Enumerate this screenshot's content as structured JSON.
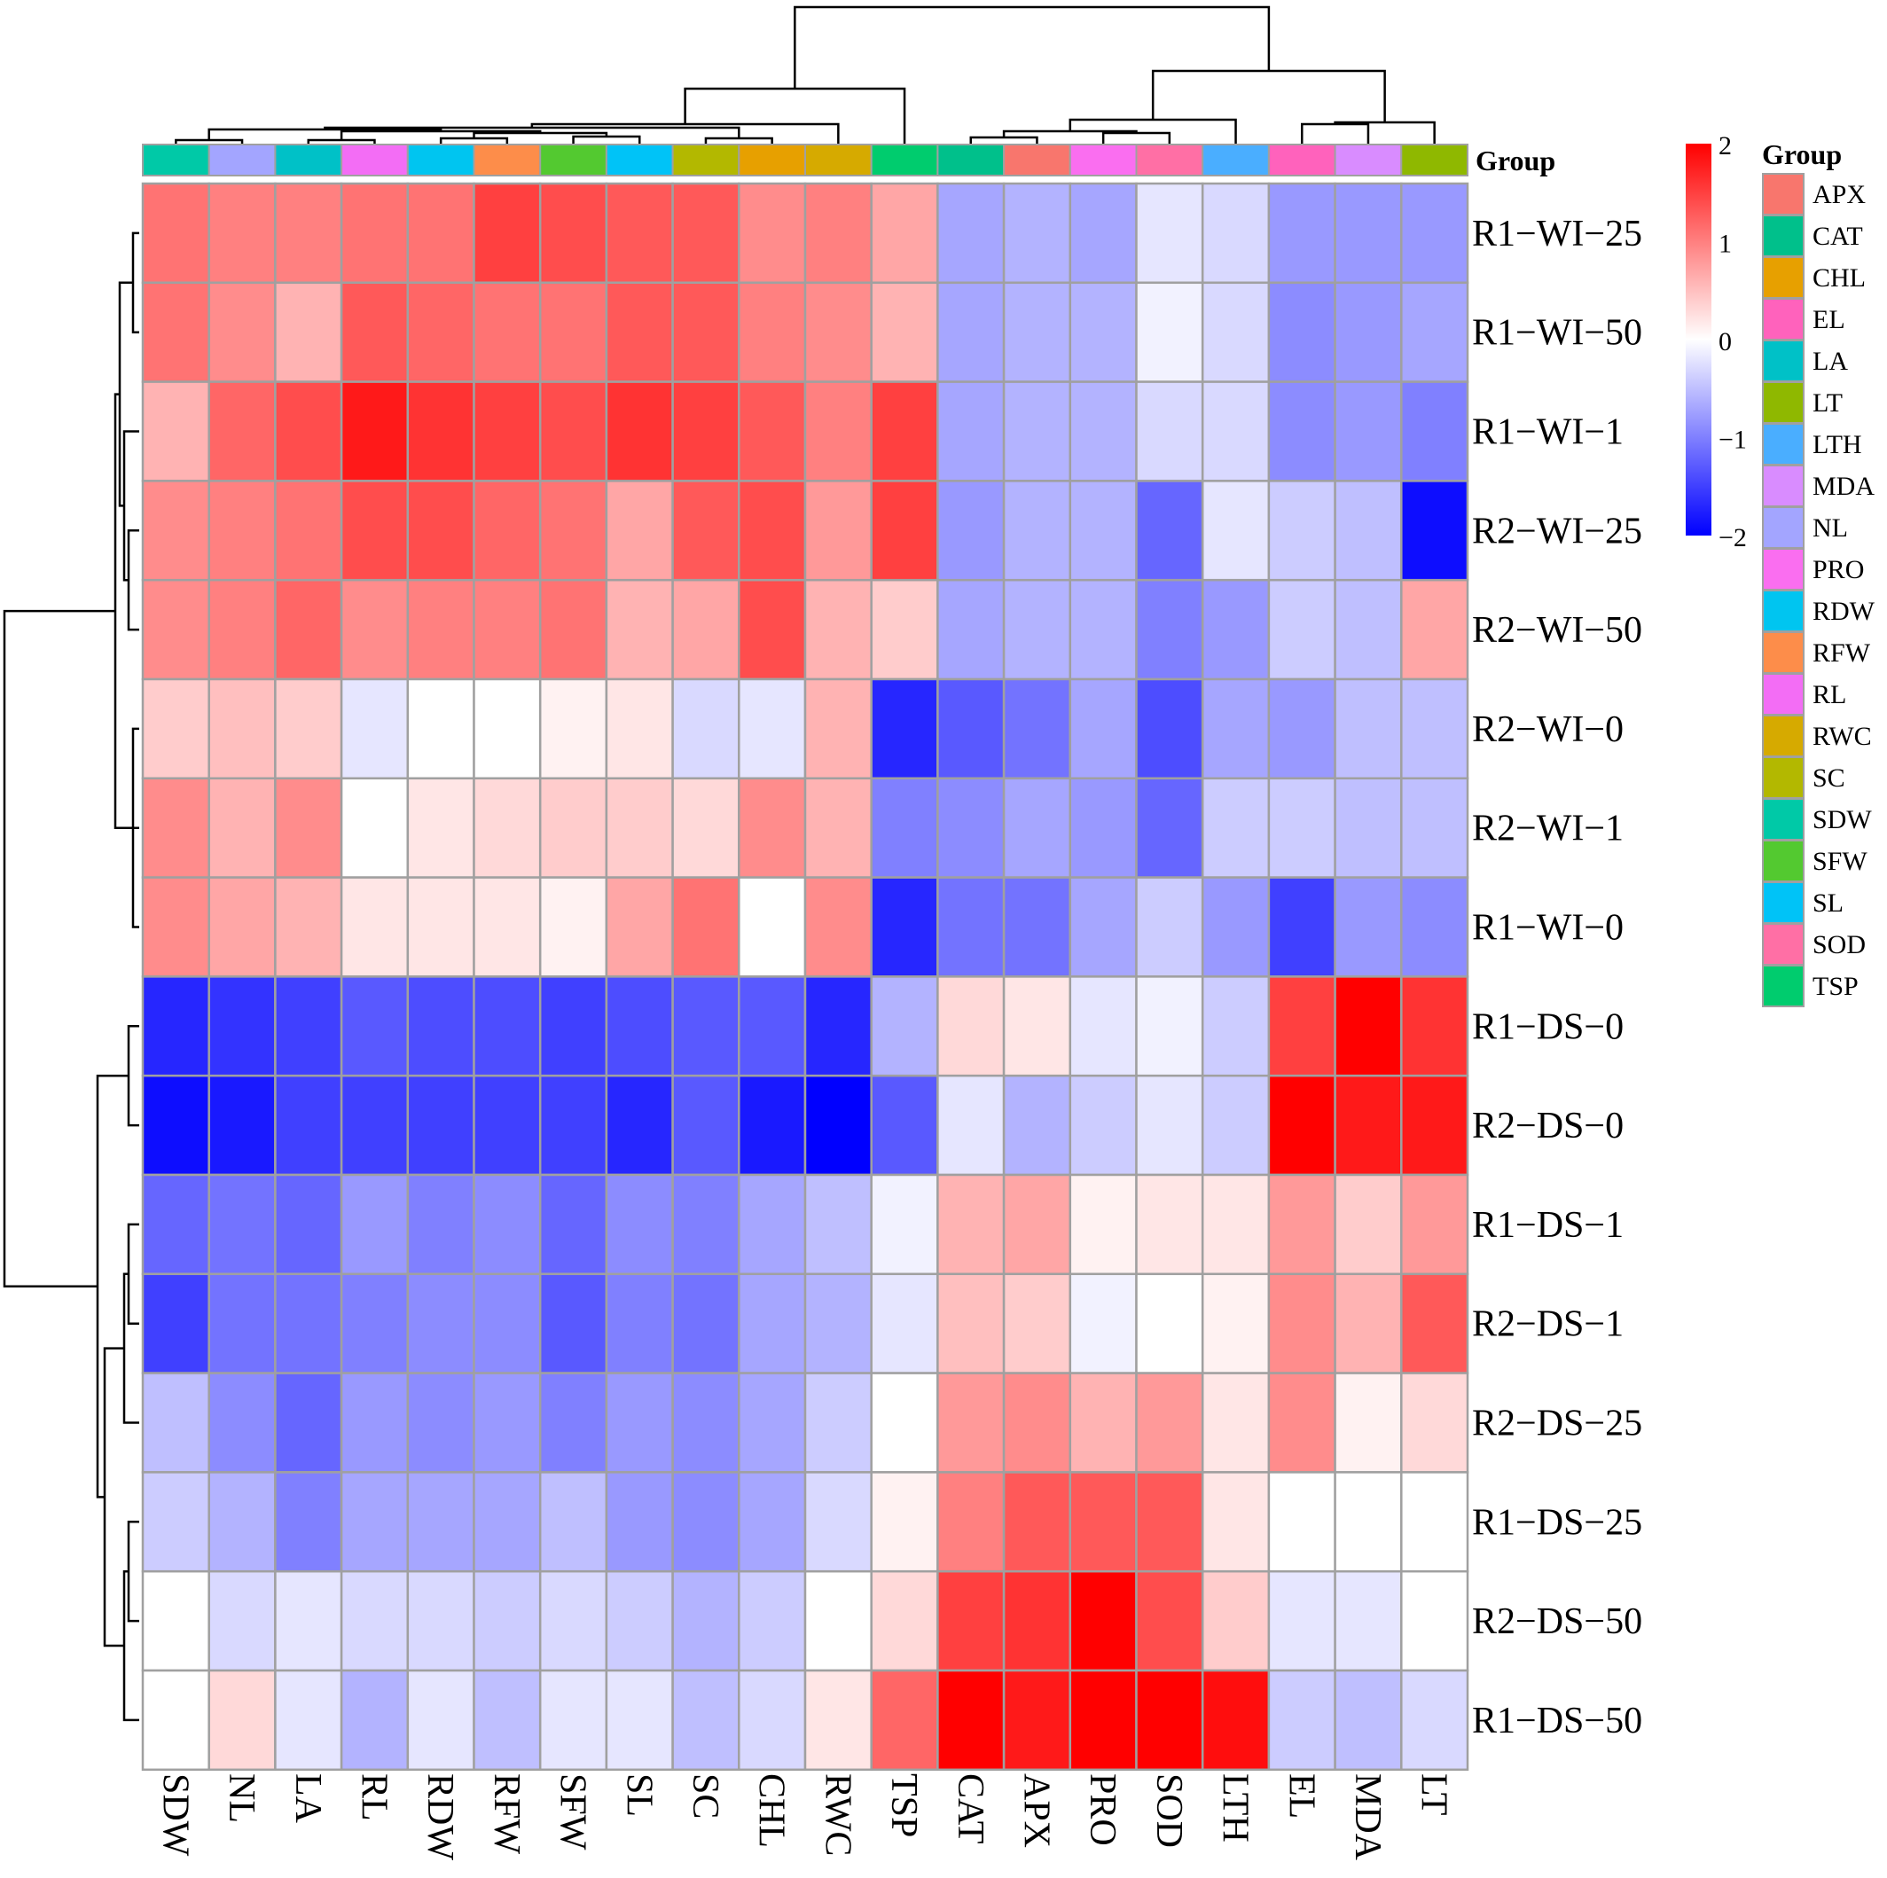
{
  "chart_data": {
    "type": "heatmap",
    "columns": [
      "SDW",
      "NL",
      "LA",
      "RL",
      "RDW",
      "RFW",
      "SFW",
      "SL",
      "SC",
      "CHL",
      "RWC",
      "TSP",
      "CAT",
      "APX",
      "PRO",
      "SOD",
      "LTH",
      "EL",
      "MDA",
      "LT"
    ],
    "rows": [
      "R1−WI−25",
      "R1−WI−50",
      "R1−WI−1",
      "R2−WI−25",
      "R2−WI−50",
      "R2−WI−0",
      "R2−WI−1",
      "R1−WI−0",
      "R1−DS−0",
      "R2−DS−0",
      "R1−DS−1",
      "R2−DS−1",
      "R2−DS−25",
      "R1−DS−25",
      "R2−DS−50",
      "R1−DS−50"
    ],
    "values": [
      [
        1.1,
        1.0,
        1.0,
        1.1,
        1.1,
        1.5,
        1.4,
        1.3,
        1.3,
        0.9,
        1.0,
        0.7,
        -0.7,
        -0.6,
        -0.7,
        -0.2,
        -0.3,
        -0.8,
        -0.8,
        -0.8
      ],
      [
        1.1,
        0.9,
        0.6,
        1.3,
        1.2,
        1.1,
        1.1,
        1.3,
        1.3,
        1.0,
        0.9,
        0.6,
        -0.7,
        -0.6,
        -0.6,
        -0.1,
        -0.3,
        -0.9,
        -0.8,
        -0.7
      ],
      [
        0.6,
        1.2,
        1.4,
        1.8,
        1.6,
        1.5,
        1.4,
        1.6,
        1.5,
        1.3,
        1.0,
        1.5,
        -0.7,
        -0.6,
        -0.6,
        -0.3,
        -0.3,
        -0.9,
        -0.8,
        -1.0
      ],
      [
        0.9,
        1.0,
        1.1,
        1.4,
        1.4,
        1.2,
        1.1,
        0.7,
        1.3,
        1.4,
        0.8,
        1.5,
        -0.8,
        -0.6,
        -0.6,
        -1.2,
        -0.2,
        -0.4,
        -0.5,
        -1.9
      ],
      [
        0.9,
        1.0,
        1.2,
        0.9,
        1.0,
        1.0,
        1.1,
        0.6,
        0.7,
        1.4,
        0.6,
        0.4,
        -0.7,
        -0.6,
        -0.6,
        -1.0,
        -0.8,
        -0.4,
        -0.5,
        0.7
      ],
      [
        0.4,
        0.5,
        0.4,
        -0.2,
        0.0,
        0.0,
        0.1,
        0.2,
        -0.3,
        -0.2,
        0.6,
        -1.7,
        -1.3,
        -1.1,
        -0.7,
        -1.4,
        -0.7,
        -0.8,
        -0.5,
        -0.5
      ],
      [
        0.9,
        0.6,
        0.9,
        0.0,
        0.2,
        0.3,
        0.4,
        0.4,
        0.3,
        0.9,
        0.6,
        -1.0,
        -0.9,
        -0.7,
        -0.8,
        -1.2,
        -0.4,
        -0.4,
        -0.5,
        -0.5
      ],
      [
        0.9,
        0.7,
        0.6,
        0.2,
        0.2,
        0.2,
        0.1,
        0.7,
        1.1,
        0.0,
        0.9,
        -1.7,
        -1.1,
        -1.1,
        -0.7,
        -0.4,
        -0.8,
        -1.5,
        -0.8,
        -0.9
      ],
      [
        -1.7,
        -1.6,
        -1.5,
        -1.3,
        -1.4,
        -1.4,
        -1.5,
        -1.4,
        -1.3,
        -1.3,
        -1.7,
        -0.6,
        0.3,
        0.2,
        -0.2,
        -0.1,
        -0.4,
        1.5,
        2.0,
        1.6
      ],
      [
        -1.9,
        -1.8,
        -1.5,
        -1.5,
        -1.5,
        -1.5,
        -1.5,
        -1.7,
        -1.3,
        -1.8,
        -2.0,
        -1.3,
        -0.2,
        -0.6,
        -0.4,
        -0.2,
        -0.4,
        2.0,
        1.8,
        1.8
      ],
      [
        -1.2,
        -1.1,
        -1.2,
        -0.8,
        -1.0,
        -0.9,
        -1.2,
        -0.9,
        -1.0,
        -0.7,
        -0.5,
        -0.1,
        0.6,
        0.7,
        0.1,
        0.2,
        0.2,
        0.8,
        0.4,
        0.8
      ],
      [
        -1.5,
        -1.1,
        -1.1,
        -1.0,
        -0.9,
        -0.9,
        -1.3,
        -1.0,
        -1.1,
        -0.7,
        -0.6,
        -0.2,
        0.5,
        0.4,
        -0.1,
        0.0,
        0.1,
        0.9,
        0.6,
        1.3
      ],
      [
        -0.5,
        -0.9,
        -1.2,
        -0.8,
        -0.9,
        -0.8,
        -1.0,
        -0.8,
        -0.9,
        -0.7,
        -0.4,
        0.0,
        0.8,
        0.9,
        0.6,
        0.8,
        0.2,
        0.9,
        0.1,
        0.3
      ],
      [
        -0.4,
        -0.6,
        -1.0,
        -0.7,
        -0.7,
        -0.7,
        -0.5,
        -0.8,
        -0.9,
        -0.7,
        -0.3,
        0.1,
        1.0,
        1.3,
        1.3,
        1.3,
        0.2,
        0.0,
        0.0,
        0.0
      ],
      [
        0.0,
        -0.3,
        -0.2,
        -0.3,
        -0.3,
        -0.4,
        -0.3,
        -0.4,
        -0.6,
        -0.4,
        0.0,
        0.3,
        1.5,
        1.6,
        2.0,
        1.4,
        0.4,
        -0.2,
        -0.2,
        0.0
      ],
      [
        0.0,
        0.3,
        -0.2,
        -0.6,
        -0.2,
        -0.5,
        -0.2,
        -0.2,
        -0.5,
        -0.3,
        0.2,
        1.2,
        2.0,
        1.8,
        2.0,
        2.0,
        1.9,
        -0.4,
        -0.5,
        -0.3
      ]
    ],
    "legend_title": "Group",
    "group_legend": [
      {
        "label": "APX",
        "color": "#f8766d"
      },
      {
        "label": "CAT",
        "color": "#00c08b"
      },
      {
        "label": "CHL",
        "color": "#e7a000"
      },
      {
        "label": "EL",
        "color": "#ff62bc"
      },
      {
        "label": "LA",
        "color": "#00c1c7"
      },
      {
        "label": "LT",
        "color": "#8fb800"
      },
      {
        "label": "LTH",
        "color": "#4aaeff"
      },
      {
        "label": "MDA",
        "color": "#d98cff"
      },
      {
        "label": "NL",
        "color": "#a3a5ff"
      },
      {
        "label": "PRO",
        "color": "#fa6ef0"
      },
      {
        "label": "RDW",
        "color": "#00c5f0"
      },
      {
        "label": "RFW",
        "color": "#fd8d4a"
      },
      {
        "label": "RL",
        "color": "#f36df5"
      },
      {
        "label": "RWC",
        "color": "#d6aa00"
      },
      {
        "label": "SC",
        "color": "#b3b800"
      },
      {
        "label": "SDW",
        "color": "#00c9a7"
      },
      {
        "label": "SFW",
        "color": "#53c930"
      },
      {
        "label": "SL",
        "color": "#00c3f7"
      },
      {
        "label": "SOD",
        "color": "#ff6fa5"
      },
      {
        "label": "TSP",
        "color": "#00cc6e"
      }
    ],
    "colorbar": {
      "min": -2,
      "max": 2,
      "ticks": [
        "2",
        "1",
        "0",
        "−1",
        "−2"
      ],
      "low_color": "#0000ff",
      "mid_color": "#ffffff",
      "high_color": "#ff0000"
    }
  }
}
